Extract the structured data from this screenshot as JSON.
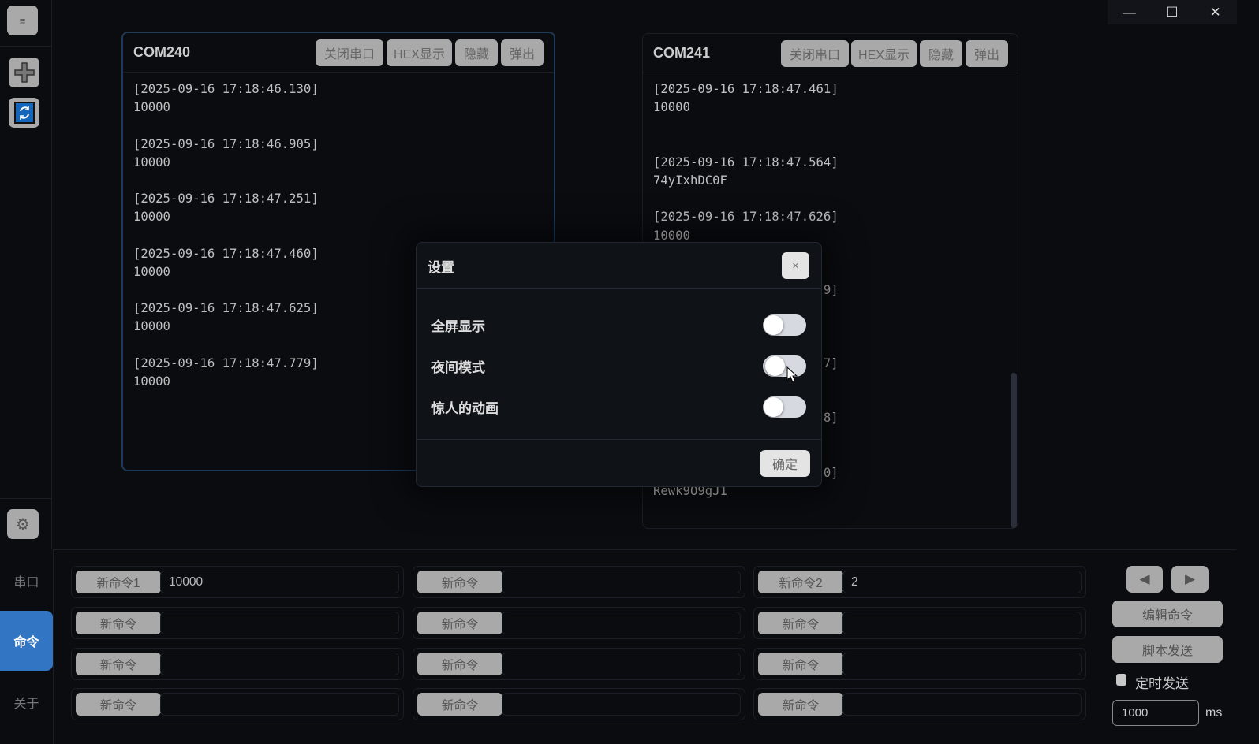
{
  "sidebar": {
    "menu_icon": "≡",
    "add_icon": "plus-icon",
    "refresh_icon": "refresh-icon",
    "settings_icon": "gear-icon",
    "nav": [
      {
        "label": "串口"
      },
      {
        "label": "命令",
        "active": true
      },
      {
        "label": "关于"
      }
    ],
    "accent": "#3276c3"
  },
  "window": {
    "minimize": "—",
    "maximize": "☐",
    "close": "✕"
  },
  "ports": [
    {
      "name": "COM240",
      "buttons": [
        "关闭串口",
        "HEX显示",
        "隐藏",
        "弹出"
      ],
      "lines": [
        "[2025-09-16 17:18:46.130]",
        "10000",
        "",
        "[2025-09-16 17:18:46.905]",
        "10000",
        "",
        "[2025-09-16 17:18:47.251]",
        "10000",
        "",
        "[2025-09-16 17:18:47.460]",
        "10000",
        "",
        "[2025-09-16 17:18:47.625]",
        "10000",
        "",
        "[2025-09-16 17:18:47.779]",
        "10000"
      ]
    },
    {
      "name": "COM241",
      "buttons": [
        "关闭串口",
        "HEX显示",
        "隐藏",
        "弹出"
      ],
      "lines": [
        "[2025-09-16 17:18:47.461]",
        "10000",
        "",
        "",
        "[2025-09-16 17:18:47.564]",
        "74yIxhDC0F",
        "",
        "[2025-09-16 17:18:47.626]",
        "10000",
        "",
        "",
        "9]",
        "",
        "",
        "",
        "7]",
        "",
        "",
        "8]",
        "",
        "",
        "0]",
        "Rewk9O9gJ1"
      ]
    }
  ],
  "settings": {
    "title": "设置",
    "close": "×",
    "options": [
      {
        "label": "全屏显示",
        "on": false
      },
      {
        "label": "夜间模式",
        "on": false
      },
      {
        "label": "惊人的动画",
        "on": false
      }
    ],
    "confirm": "确定"
  },
  "commands": [
    [
      "新命令1",
      "10000"
    ],
    [
      "新命令",
      ""
    ],
    [
      "新命令2",
      "2"
    ],
    [
      "新命令",
      ""
    ],
    [
      "新命令",
      ""
    ],
    [
      "新命令",
      ""
    ],
    [
      "新命令",
      ""
    ],
    [
      "新命令",
      ""
    ],
    [
      "新命令",
      ""
    ],
    [
      "新命令",
      ""
    ],
    [
      "新命令",
      ""
    ],
    [
      "新命令",
      ""
    ]
  ],
  "controls": {
    "prev": "◀",
    "next": "▶",
    "edit": "编辑命令",
    "script": "脚本发送",
    "timed_label": "定时发送",
    "timed_checked": false,
    "interval": "1000",
    "unit": "ms"
  }
}
